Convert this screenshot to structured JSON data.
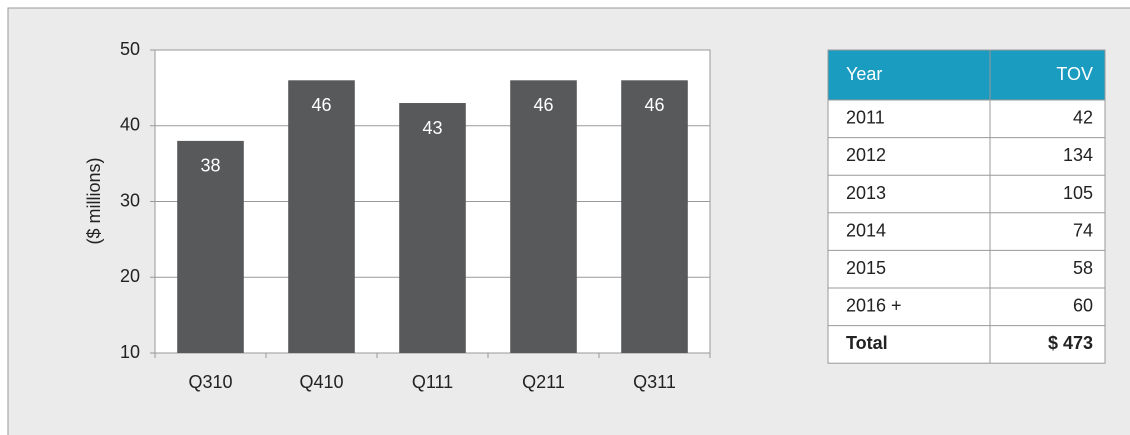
{
  "chart_data": {
    "type": "bar",
    "y_label": "($ millions)",
    "categories": [
      "Q310",
      "Q410",
      "Q111",
      "Q211",
      "Q311"
    ],
    "values": [
      38,
      46,
      43,
      46,
      46
    ],
    "color": "#58595b",
    "ylim": [
      10,
      50
    ],
    "yticks": [
      10,
      20,
      30,
      40,
      50
    ],
    "grid": true
  },
  "table": {
    "header": [
      "Year",
      "TOV"
    ],
    "rows": [
      [
        "2011",
        "42"
      ],
      [
        "2012",
        "134"
      ],
      [
        "2013",
        "105"
      ],
      [
        "2014",
        "74"
      ],
      [
        "2015",
        "58"
      ],
      [
        "2016 +",
        "60"
      ],
      [
        "Total",
        "$ 473"
      ]
    ]
  }
}
